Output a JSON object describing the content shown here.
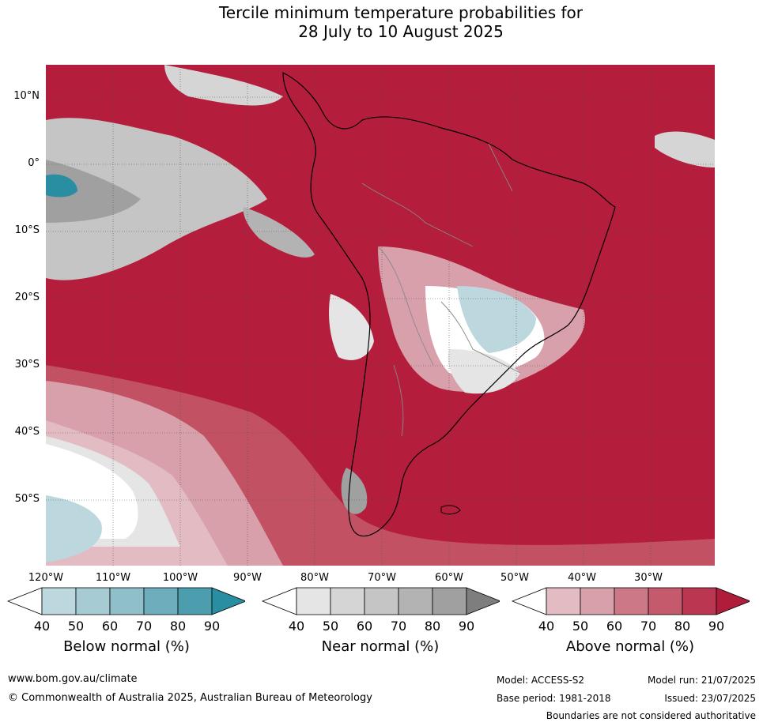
{
  "title": {
    "line1": "Tercile minimum temperature probabilities for",
    "line2": "28 July to 10 August 2025"
  },
  "map": {
    "region": "South America",
    "latitude_labels": [
      "10°N",
      "0°",
      "10°S",
      "20°S",
      "30°S",
      "40°S",
      "50°S"
    ],
    "longitude_labels": [
      "120°W",
      "110°W",
      "100°W",
      "90°W",
      "80°W",
      "70°W",
      "60°W",
      "50°W",
      "40°W",
      "30°W"
    ]
  },
  "colorbars": [
    {
      "title": "Below normal (%)",
      "ticks": [
        "40",
        "50",
        "60",
        "70",
        "80",
        "90"
      ],
      "colors": [
        "#ffffff",
        "#bcd7dd",
        "#a6cbd2",
        "#8fbfc8",
        "#6eaebc",
        "#4c9eae",
        "#2a8ea2"
      ]
    },
    {
      "title": "Near normal (%)",
      "ticks": [
        "40",
        "50",
        "60",
        "70",
        "80",
        "90"
      ],
      "colors": [
        "#ffffff",
        "#e5e5e5",
        "#d5d5d5",
        "#c5c5c5",
        "#b3b3b3",
        "#a0a0a0",
        "#7e7e7e"
      ]
    },
    {
      "title": "Above normal (%)",
      "ticks": [
        "40",
        "50",
        "60",
        "70",
        "80",
        "90"
      ],
      "colors": [
        "#ffffff",
        "#e3bcc3",
        "#d8a0aa",
        "#cc7886",
        "#c55a6c",
        "#ba3651",
        "#b01d3b"
      ]
    }
  ],
  "footer": {
    "url": "www.bom.gov.au/climate",
    "copyright": "© Commonwealth of Australia 2025, Australian Bureau of Meteorology",
    "model": "Model: ACCESS-S2",
    "model_run": "Model run: 21/07/2025",
    "base_period": "Base period: 1981-2018",
    "issued": "Issued: 23/07/2025",
    "disclaimer": "Boundaries are not considered authoritative"
  }
}
